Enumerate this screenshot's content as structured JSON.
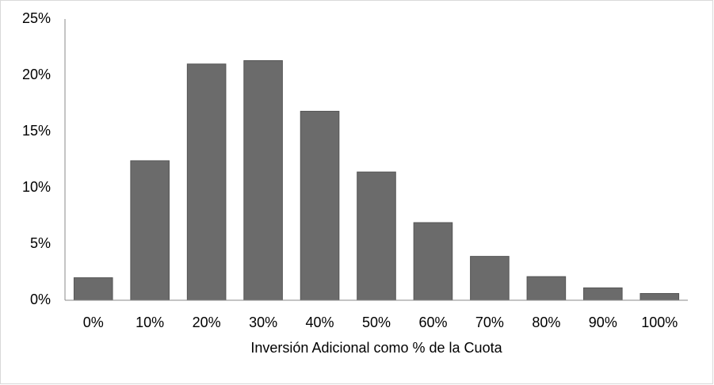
{
  "chart_data": {
    "type": "bar",
    "x_label": "Inversión Adicional como % de la Cuota",
    "categories": [
      "0%",
      "10%",
      "20%",
      "30%",
      "40%",
      "50%",
      "60%",
      "70%",
      "80%",
      "90%",
      "100%"
    ],
    "values": [
      2.0,
      12.4,
      21.0,
      21.3,
      16.8,
      11.4,
      6.9,
      3.9,
      2.1,
      1.1,
      0.6
    ],
    "color": "#6b6b6b",
    "ylim": [
      0,
      25
    ],
    "yticks": [
      {
        "value": 0,
        "label": "0%"
      },
      {
        "value": 5,
        "label": "5%"
      },
      {
        "value": 10,
        "label": "10%"
      },
      {
        "value": 15,
        "label": "15%"
      },
      {
        "value": 20,
        "label": "20%"
      },
      {
        "value": 25,
        "label": "25%"
      }
    ],
    "grid": false
  }
}
